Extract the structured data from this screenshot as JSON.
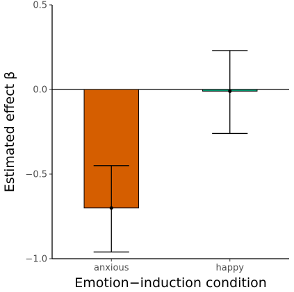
{
  "chart_data": {
    "type": "bar",
    "categories": [
      "anxious",
      "happy"
    ],
    "series": [
      {
        "values": [
          -0.7,
          -0.01
        ],
        "error_low": [
          -0.96,
          -0.26
        ],
        "error_high": [
          -0.45,
          0.23
        ]
      }
    ],
    "bar_colors": [
      "#d55e00",
      "#009e73"
    ],
    "xlabel": "Emotion−induction condition",
    "ylabel": "Estimated effect β",
    "ylim": [
      -1.0,
      0.5
    ],
    "yticks": [
      0.5,
      0.0,
      -0.5,
      -1.0
    ],
    "ytick_labels": [
      "0.5",
      "0.0",
      "−0.5",
      "−1.0"
    ],
    "zero_line": true,
    "grid": false
  }
}
